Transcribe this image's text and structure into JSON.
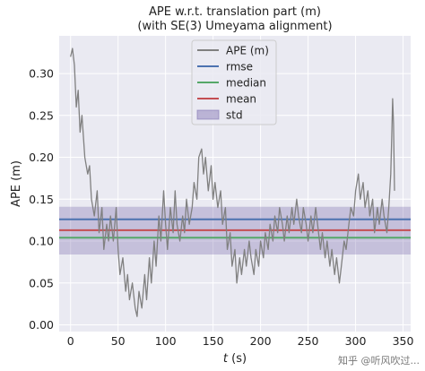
{
  "chart_data": {
    "type": "line",
    "title": "APE w.r.t. translation part (m)",
    "subtitle": "(with SE(3) Umeyama alignment)",
    "xlabel_italic": "t",
    "xlabel_rest": " (s)",
    "ylabel": "APE (m)",
    "xlim": [
      -12,
      358
    ],
    "ylim": [
      -0.008,
      0.345
    ],
    "xticks": [
      0,
      50,
      100,
      150,
      200,
      250,
      300,
      350
    ],
    "yticks": [
      0.0,
      0.05,
      0.1,
      0.15,
      0.2,
      0.25,
      0.3
    ],
    "xtick_labels": [
      "0",
      "50",
      "100",
      "150",
      "200",
      "250",
      "300",
      "350"
    ],
    "ytick_labels": [
      "0.00",
      "0.05",
      "0.10",
      "0.15",
      "0.20",
      "0.25",
      "0.30"
    ],
    "grid": true,
    "legend_position": "top-center",
    "legend": [
      {
        "label": "APE (m)",
        "color": "#808080",
        "kind": "line"
      },
      {
        "label": "rmse",
        "color": "#4c72b0",
        "kind": "line"
      },
      {
        "label": "median",
        "color": "#55a868",
        "kind": "line"
      },
      {
        "label": "mean",
        "color": "#c44e52",
        "kind": "line"
      },
      {
        "label": "std",
        "color": "#8172b2",
        "kind": "patch"
      }
    ],
    "stats": {
      "rmse": 0.126,
      "median": 0.104,
      "mean": 0.113,
      "std_band": [
        0.084,
        0.141
      ]
    },
    "series": [
      {
        "name": "APE (m)",
        "color": "#808080",
        "x": [
          0,
          2,
          4,
          6,
          8,
          10,
          12,
          15,
          18,
          20,
          22,
          25,
          28,
          30,
          33,
          35,
          38,
          40,
          42,
          45,
          48,
          50,
          52,
          55,
          58,
          60,
          62,
          65,
          68,
          70,
          72,
          75,
          78,
          80,
          83,
          85,
          88,
          90,
          93,
          95,
          98,
          100,
          102,
          105,
          108,
          110,
          112,
          115,
          118,
          120,
          122,
          125,
          128,
          130,
          133,
          135,
          138,
          140,
          142,
          145,
          148,
          150,
          152,
          155,
          158,
          160,
          163,
          165,
          168,
          170,
          173,
          175,
          178,
          180,
          183,
          185,
          188,
          190,
          193,
          195,
          198,
          200,
          203,
          205,
          208,
          210,
          213,
          215,
          218,
          220,
          223,
          225,
          228,
          230,
          233,
          235,
          238,
          240,
          243,
          245,
          248,
          250,
          253,
          255,
          258,
          260,
          263,
          265,
          268,
          270,
          273,
          275,
          278,
          280,
          283,
          285,
          288,
          290,
          293,
          295,
          298,
          300,
          303,
          305,
          308,
          310,
          313,
          315,
          318,
          320,
          323,
          325,
          328,
          330,
          333,
          335,
          337,
          338,
          339,
          340,
          341
        ],
        "y": [
          0.32,
          0.33,
          0.31,
          0.26,
          0.28,
          0.23,
          0.25,
          0.2,
          0.18,
          0.19,
          0.15,
          0.13,
          0.16,
          0.11,
          0.14,
          0.09,
          0.12,
          0.1,
          0.13,
          0.1,
          0.14,
          0.09,
          0.06,
          0.08,
          0.04,
          0.06,
          0.03,
          0.05,
          0.02,
          0.01,
          0.04,
          0.02,
          0.06,
          0.03,
          0.08,
          0.05,
          0.1,
          0.07,
          0.13,
          0.1,
          0.16,
          0.12,
          0.09,
          0.14,
          0.11,
          0.16,
          0.12,
          0.1,
          0.13,
          0.11,
          0.15,
          0.12,
          0.14,
          0.17,
          0.15,
          0.2,
          0.21,
          0.18,
          0.2,
          0.16,
          0.19,
          0.15,
          0.17,
          0.14,
          0.16,
          0.12,
          0.14,
          0.09,
          0.11,
          0.07,
          0.09,
          0.05,
          0.08,
          0.06,
          0.09,
          0.07,
          0.1,
          0.08,
          0.06,
          0.09,
          0.07,
          0.1,
          0.08,
          0.11,
          0.09,
          0.12,
          0.1,
          0.13,
          0.11,
          0.14,
          0.12,
          0.1,
          0.13,
          0.11,
          0.14,
          0.12,
          0.15,
          0.13,
          0.11,
          0.14,
          0.12,
          0.1,
          0.13,
          0.11,
          0.14,
          0.12,
          0.09,
          0.11,
          0.08,
          0.1,
          0.07,
          0.09,
          0.06,
          0.08,
          0.05,
          0.07,
          0.1,
          0.09,
          0.12,
          0.14,
          0.13,
          0.16,
          0.18,
          0.15,
          0.17,
          0.14,
          0.16,
          0.13,
          0.15,
          0.11,
          0.14,
          0.12,
          0.15,
          0.13,
          0.11,
          0.14,
          0.18,
          0.22,
          0.27,
          0.24,
          0.16
        ]
      }
    ]
  },
  "watermark": "知乎 @听风吹过..."
}
